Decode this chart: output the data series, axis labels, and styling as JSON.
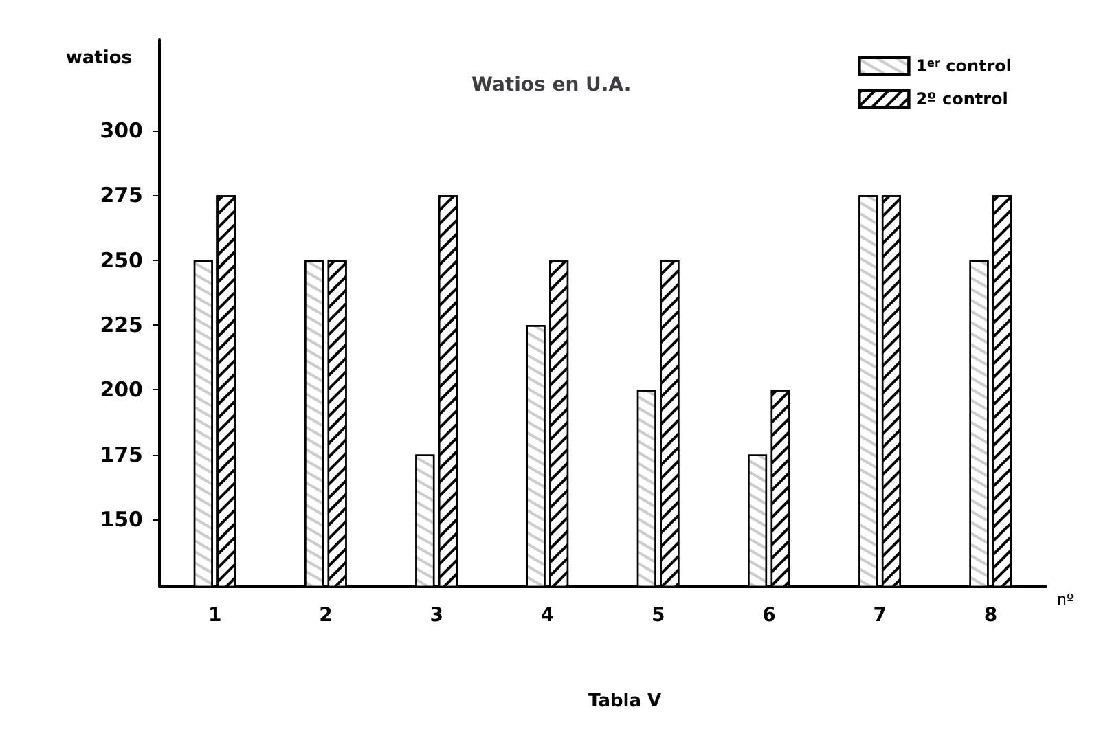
{
  "chart_data": {
    "type": "bar",
    "title": "Watios en U.A.",
    "ylabel": "watios",
    "xlabel": "nº",
    "categories": [
      "1",
      "2",
      "3",
      "4",
      "5",
      "6",
      "7",
      "8"
    ],
    "series": [
      {
        "name": "1$^{er}$ control",
        "color": "#ffffff",
        "values": [
          250,
          250,
          175,
          225,
          200,
          175,
          275,
          250
        ]
      },
      {
        "name": "2º control",
        "color": "#000000",
        "values": [
          275,
          250,
          275,
          250,
          250,
          200,
          275,
          275
        ]
      }
    ],
    "ylim": [
      124,
      335
    ],
    "yticks": [
      150,
      175,
      200,
      225,
      250,
      275,
      300
    ],
    "grid": false,
    "legend": "top right",
    "annotations": [
      "Tabla V"
    ]
  }
}
